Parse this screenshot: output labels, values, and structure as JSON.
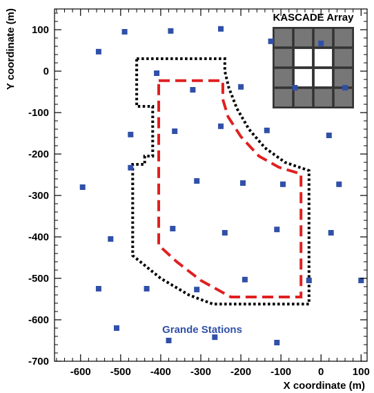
{
  "chart_data": {
    "type": "scatter",
    "xlabel": "X coordinate (m)",
    "ylabel": "Y coordinate (m)",
    "xlim": [
      -665,
      115
    ],
    "ylim": [
      -700,
      150
    ],
    "x_ticks": [
      -600,
      -500,
      -400,
      -300,
      -200,
      -100,
      0,
      100
    ],
    "y_ticks": [
      100,
      0,
      -100,
      -200,
      -300,
      -400,
      -500,
      -600,
      -700
    ],
    "grid": false,
    "colors": {
      "stations": "#3050a8",
      "outer_boundary": "#000000",
      "inner_boundary": "#e02020",
      "array_cell": "#777777",
      "array_cell_inner": "#ffffff"
    },
    "annotations": {
      "stations_label": "Grande Stations",
      "array_label": "KASCADE Array"
    },
    "series": [
      {
        "name": "Grande Stations",
        "points": [
          {
            "x": -490,
            "y": 95
          },
          {
            "x": -375,
            "y": 97
          },
          {
            "x": -250,
            "y": 102
          },
          {
            "x": -125,
            "y": 72
          },
          {
            "x": -555,
            "y": 47
          },
          {
            "x": 0,
            "y": 67
          },
          {
            "x": -410,
            "y": -5
          },
          {
            "x": -320,
            "y": -45
          },
          {
            "x": -200,
            "y": -38
          },
          {
            "x": -65,
            "y": -40
          },
          {
            "x": 60,
            "y": -40
          },
          {
            "x": -475,
            "y": -153
          },
          {
            "x": -365,
            "y": -145
          },
          {
            "x": -250,
            "y": -133
          },
          {
            "x": -135,
            "y": -143
          },
          {
            "x": 20,
            "y": -155
          },
          {
            "x": -475,
            "y": -233
          },
          {
            "x": -310,
            "y": -265
          },
          {
            "x": -195,
            "y": -270
          },
          {
            "x": -95,
            "y": -273
          },
          {
            "x": 45,
            "y": -273
          },
          {
            "x": -595,
            "y": -280
          },
          {
            "x": -370,
            "y": -380
          },
          {
            "x": -240,
            "y": -390
          },
          {
            "x": -110,
            "y": -382
          },
          {
            "x": 25,
            "y": -390
          },
          {
            "x": -525,
            "y": -405
          },
          {
            "x": -190,
            "y": -503
          },
          {
            "x": -30,
            "y": -505
          },
          {
            "x": 100,
            "y": -505
          },
          {
            "x": -555,
            "y": -525
          },
          {
            "x": -435,
            "y": -525
          },
          {
            "x": -310,
            "y": -527
          },
          {
            "x": -510,
            "y": -620
          },
          {
            "x": -265,
            "y": -642
          },
          {
            "x": -380,
            "y": -650
          },
          {
            "x": -110,
            "y": -655
          }
        ]
      }
    ],
    "outer_boundary": [
      {
        "x": -460,
        "y": 30
      },
      {
        "x": -240,
        "y": 30
      },
      {
        "x": -240,
        "y": 0
      },
      {
        "x": -230,
        "y": -40
      },
      {
        "x": -210,
        "y": -90
      },
      {
        "x": -180,
        "y": -140
      },
      {
        "x": -140,
        "y": -185
      },
      {
        "x": -90,
        "y": -220
      },
      {
        "x": -30,
        "y": -240
      },
      {
        "x": -30,
        "y": -562
      },
      {
        "x": -270,
        "y": -562
      },
      {
        "x": -330,
        "y": -540
      },
      {
        "x": -400,
        "y": -500
      },
      {
        "x": -470,
        "y": -445
      },
      {
        "x": -470,
        "y": -225
      },
      {
        "x": -440,
        "y": -225
      },
      {
        "x": -440,
        "y": -205
      },
      {
        "x": -420,
        "y": -205
      },
      {
        "x": -420,
        "y": -85
      },
      {
        "x": -460,
        "y": -85
      },
      {
        "x": -460,
        "y": 30
      }
    ],
    "inner_boundary": [
      {
        "x": -405,
        "y": -23
      },
      {
        "x": -245,
        "y": -23
      },
      {
        "x": -245,
        "y": -68
      },
      {
        "x": -232,
        "y": -110
      },
      {
        "x": -200,
        "y": -158
      },
      {
        "x": -155,
        "y": -205
      },
      {
        "x": -105,
        "y": -232
      },
      {
        "x": -50,
        "y": -248
      },
      {
        "x": -50,
        "y": -545
      },
      {
        "x": -225,
        "y": -545
      },
      {
        "x": -300,
        "y": -505
      },
      {
        "x": -360,
        "y": -460
      },
      {
        "x": -405,
        "y": -420
      },
      {
        "x": -405,
        "y": -23
      }
    ]
  }
}
